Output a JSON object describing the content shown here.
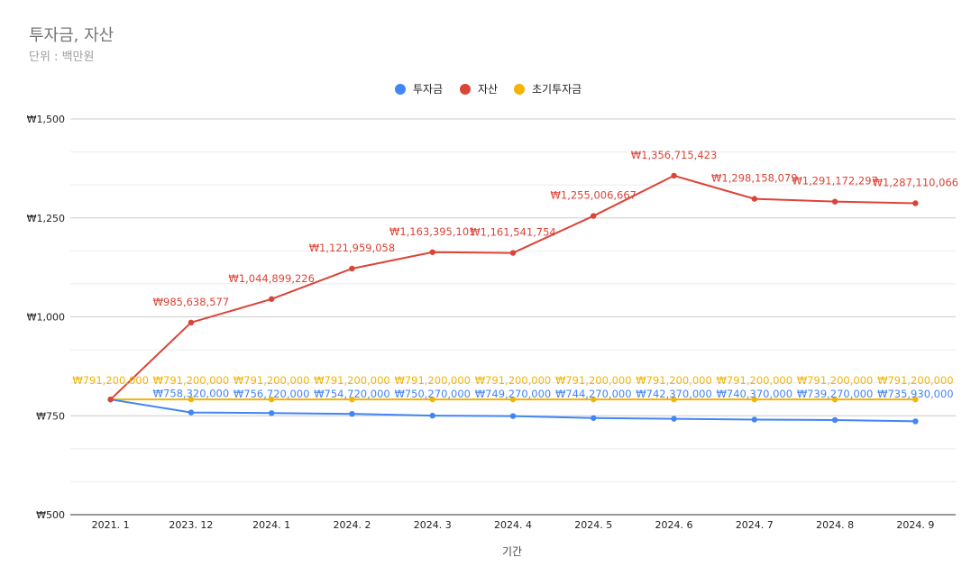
{
  "chart_data": {
    "type": "line",
    "title": "투자금, 자산",
    "subtitle": "단위 : 백만원",
    "xlabel": "기간",
    "ylabel": "",
    "categories": [
      "2021. 1",
      "2023. 12",
      "2024. 1",
      "2024. 2",
      "2024. 3",
      "2024. 4",
      "2024. 5",
      "2024. 6",
      "2024. 7",
      "2024. 8",
      "2024. 9"
    ],
    "ylim": [
      500,
      1500
    ],
    "yticks": [
      500,
      750,
      1000,
      1250,
      1500
    ],
    "ytick_labels": [
      "₩500",
      "₩750",
      "₩1,000",
      "₩1,250",
      "₩1,500"
    ],
    "legend_position": "top-center",
    "grid": true,
    "series": [
      {
        "name": "투자금",
        "color": "#4285f4",
        "values": [
          791.2,
          758.32,
          756.72,
          754.72,
          750.27,
          749.27,
          744.27,
          742.37,
          740.37,
          739.27,
          735.93
        ],
        "labels": [
          "",
          "₩758,320,000",
          "₩756,720,000",
          "₩754,720,000",
          "₩750,270,000",
          "₩749,270,000",
          "₩744,270,000",
          "₩742,370,000",
          "₩740,370,000",
          "₩739,270,000",
          "₩735,930,000"
        ]
      },
      {
        "name": "자산",
        "color": "#db4437",
        "values": [
          791.2,
          985.638577,
          1044.899226,
          1121.959058,
          1163.395101,
          1161.541754,
          1255.006667,
          1356.715423,
          1298.158079,
          1291.172297,
          1287.110066
        ],
        "labels": [
          "",
          "₩985,638,577",
          "₩1,044,899,226",
          "₩1,121,959,058",
          "₩1,163,395,101",
          "₩1,161,541,754",
          "₩1,255,006,667",
          "₩1,356,715,423",
          "₩1,298,158,079",
          "₩1,291,172,297",
          "₩1,287,110,066"
        ]
      },
      {
        "name": "초기투자금",
        "color": "#f4b400",
        "values": [
          791.2,
          791.2,
          791.2,
          791.2,
          791.2,
          791.2,
          791.2,
          791.2,
          791.2,
          791.2,
          791.2
        ],
        "labels": [
          "₩791,200,000",
          "₩791,200,000",
          "₩791,200,000",
          "₩791,200,000",
          "₩791,200,000",
          "₩791,200,000",
          "₩791,200,000",
          "₩791,200,000",
          "₩791,200,000",
          "₩791,200,000",
          "₩791,200,000"
        ]
      }
    ]
  }
}
